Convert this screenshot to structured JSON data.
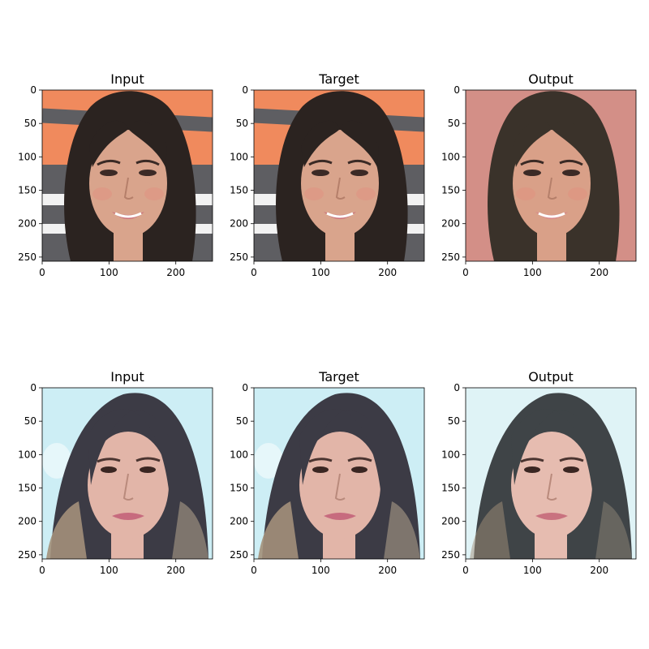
{
  "figure": {
    "rows": [
      {
        "panels": [
          {
            "title": "Input",
            "subject": "young woman, long dark hair, smiling, orange and grey striped backdrop",
            "palette": {
              "bg": "#f08a5d",
              "stripe": "#5e5e62",
              "hair": "#2b2320",
              "skin": "#d9a48c",
              "lip": "#c9707a"
            }
          },
          {
            "title": "Target",
            "subject": "young woman, long dark hair, smiling, orange and grey striped backdrop",
            "palette": {
              "bg": "#f08a5d",
              "stripe": "#5e5e62",
              "hair": "#2b2320",
              "skin": "#d9a48c",
              "lip": "#c9707a"
            }
          },
          {
            "title": "Output",
            "subject": "generated face, long dark hair, smiling, pinkish blurred backdrop",
            "palette": {
              "bg": "#d9948a",
              "stripe": "#c98880",
              "hair": "#3a322a",
              "skin": "#d9a088",
              "lip": "#d7878a"
            }
          }
        ]
      },
      {
        "panels": [
          {
            "title": "Input",
            "subject": "middle-aged woman, shoulder-length dark hair with blonde ends, light blue backdrop",
            "palette": {
              "bg": "#cdeef5",
              "stripe": "#bfe6ef",
              "hair": "#3c3b45",
              "skin": "#e2b5a8",
              "lip": "#c76b7e"
            }
          },
          {
            "title": "Target",
            "subject": "middle-aged woman, shoulder-length dark hair with blonde ends, light blue backdrop",
            "palette": {
              "bg": "#cdeef5",
              "stripe": "#bfe6ef",
              "hair": "#3c3b45",
              "skin": "#e2b5a8",
              "lip": "#c76b7e"
            }
          },
          {
            "title": "Output",
            "subject": "generated face, shoulder-length dark hair, pale blue backdrop",
            "palette": {
              "bg": "#dff3f6",
              "stripe": "#d3eef2",
              "hair": "#3f4447",
              "skin": "#e6bcb0",
              "lip": "#c9727f"
            }
          }
        ]
      }
    ],
    "x_ticks": [
      "0",
      "100",
      "200"
    ],
    "y_ticks": [
      "0",
      "50",
      "100",
      "150",
      "200",
      "250"
    ]
  }
}
